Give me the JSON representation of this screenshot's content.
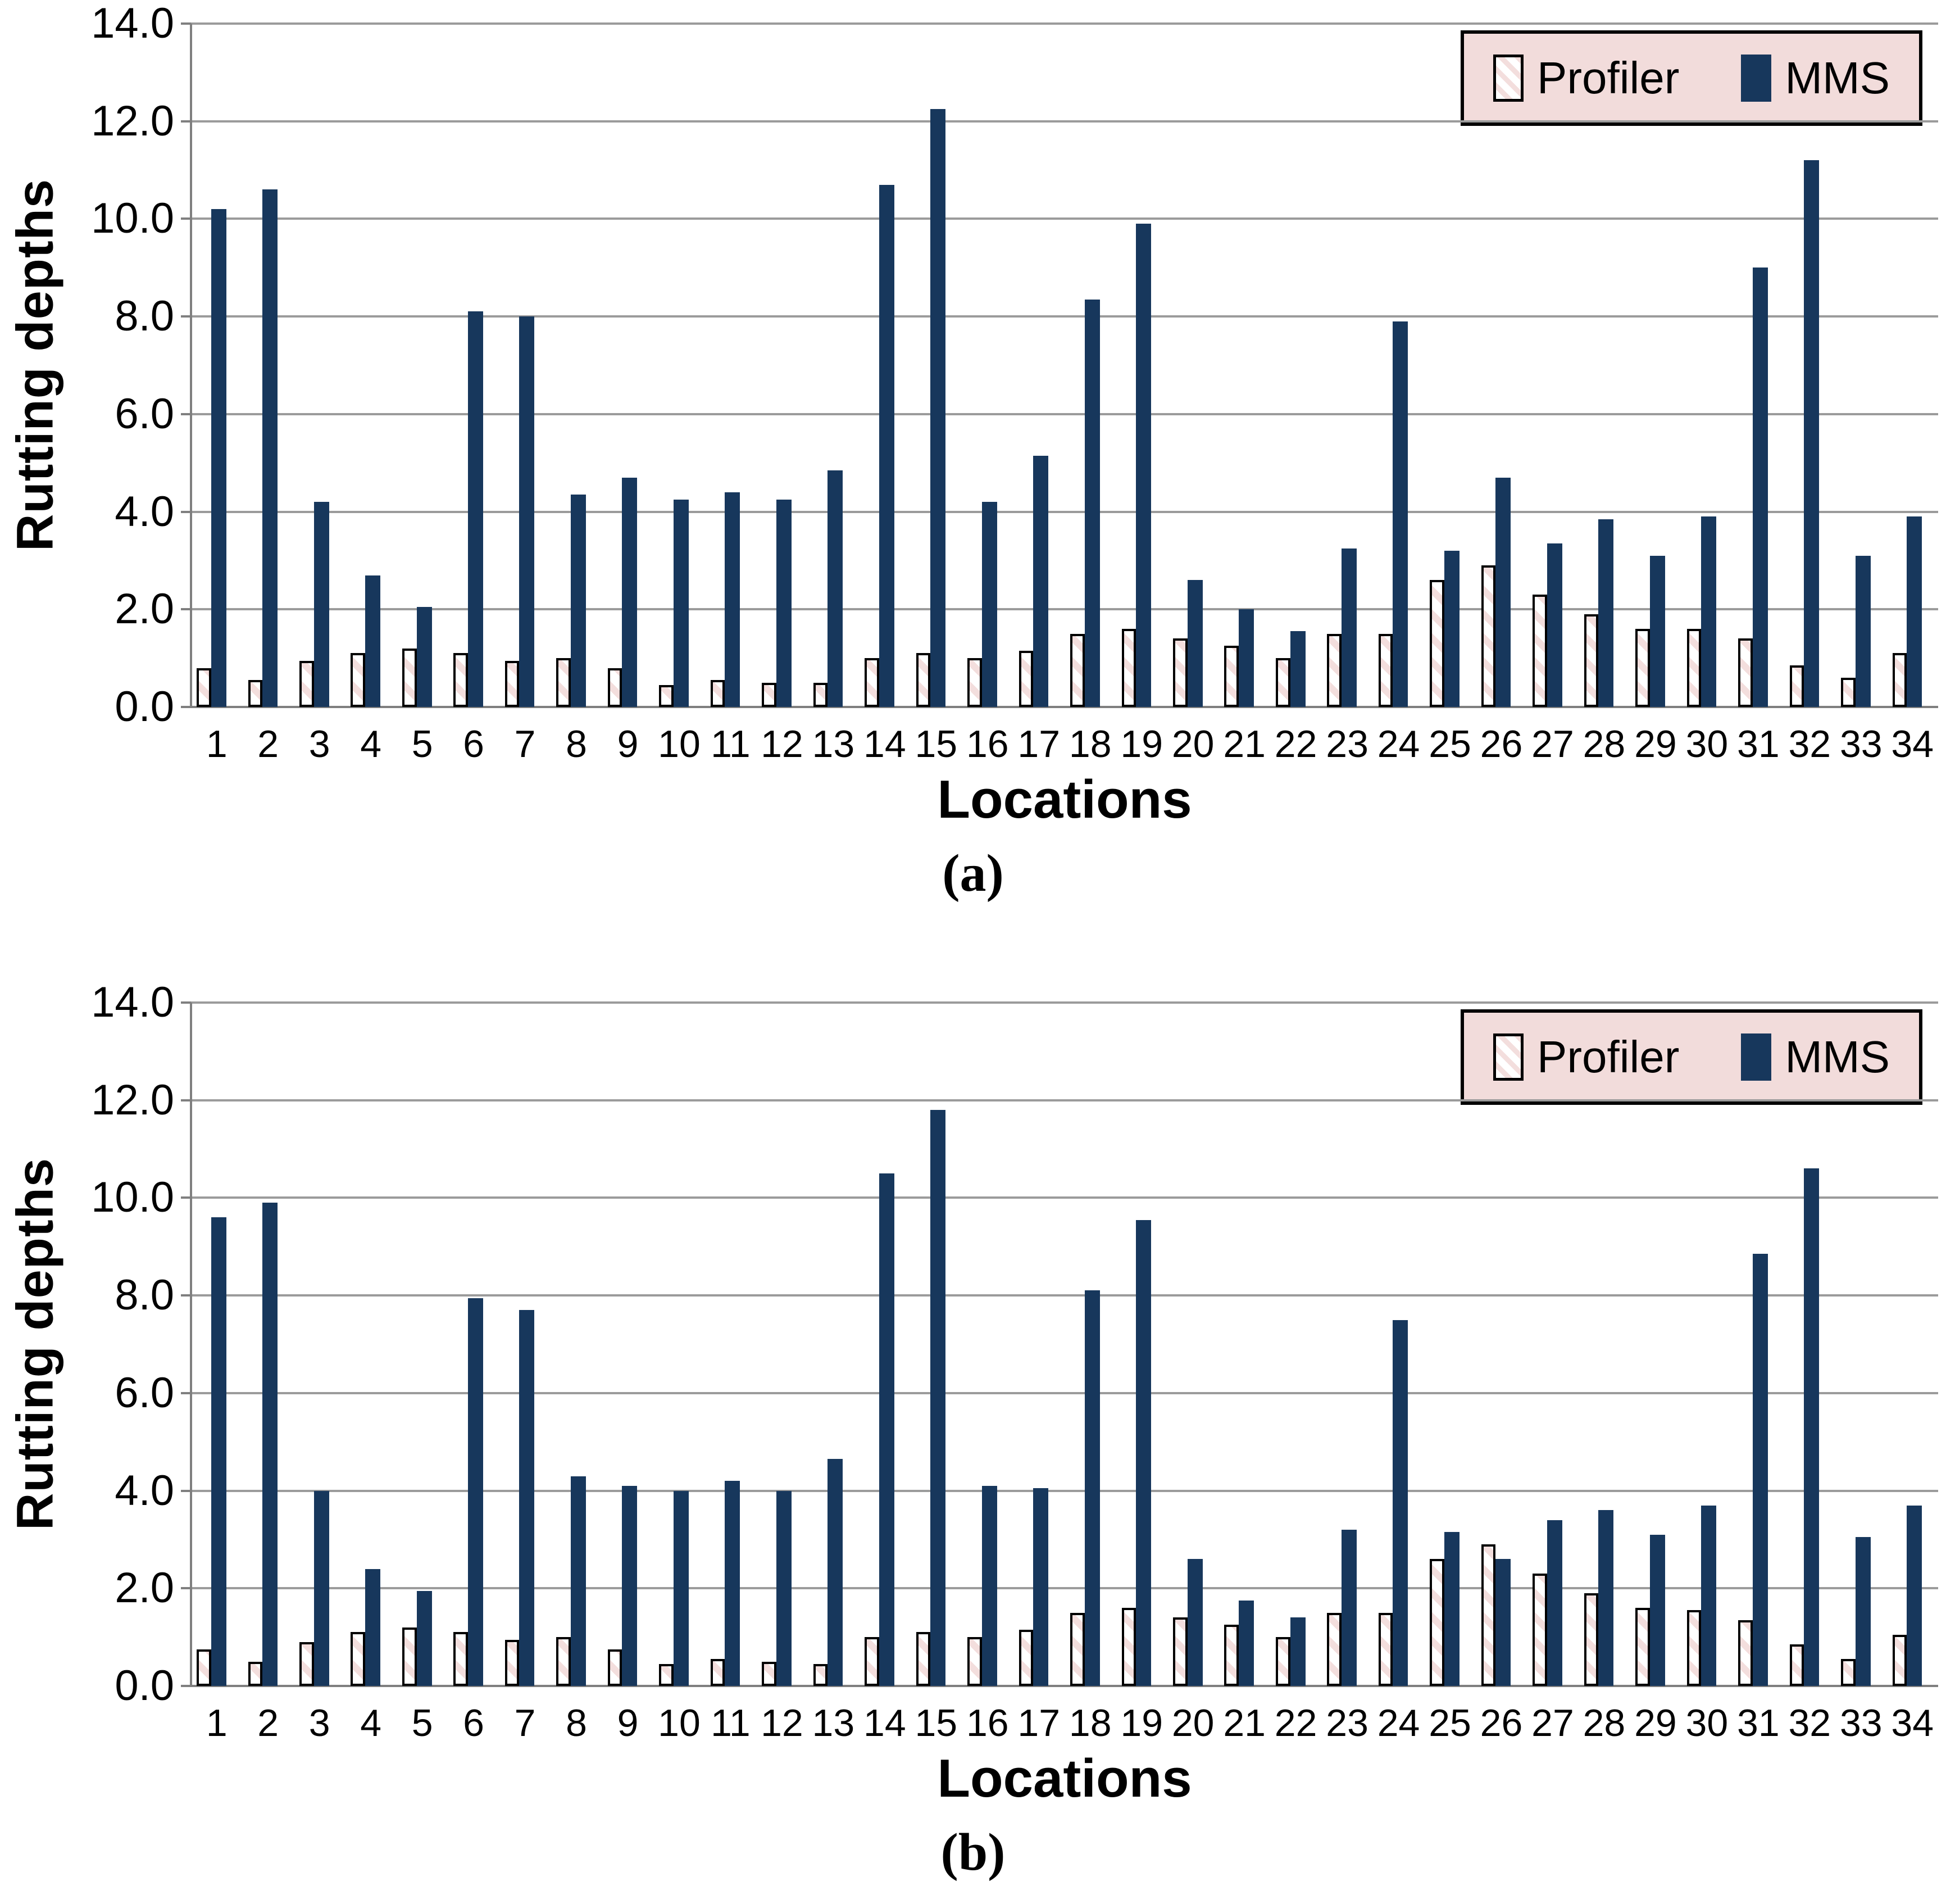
{
  "colors": {
    "mms_bar": "#17375C",
    "legend_bg": "#F2DCDB",
    "hatch_stripe": "#F3DEDD",
    "gridline": "#9B9B9B",
    "axis_line": "#7F7F7F",
    "bar_outline": "#000000",
    "text": "#000000"
  },
  "chart_data": [
    {
      "id": "a",
      "type": "bar",
      "panel_label": "(a)",
      "xlabel": "Locations",
      "ylabel": "Rutting depths",
      "ylim": [
        0,
        14
      ],
      "ytick_step": 2,
      "yticks": [
        "0.0",
        "2.0",
        "4.0",
        "6.0",
        "8.0",
        "10.0",
        "12.0",
        "14.0"
      ],
      "grid": true,
      "legend_position": "top-right",
      "categories": [
        "1",
        "2",
        "3",
        "4",
        "5",
        "6",
        "7",
        "8",
        "9",
        "10",
        "11",
        "12",
        "13",
        "14",
        "15",
        "16",
        "17",
        "18",
        "19",
        "20",
        "21",
        "22",
        "23",
        "24",
        "25",
        "26",
        "27",
        "28",
        "29",
        "30",
        "31",
        "32",
        "33",
        "34"
      ],
      "series": [
        {
          "name": "Profiler",
          "style": "hatched-pink",
          "values": [
            0.8,
            0.55,
            0.95,
            1.1,
            1.2,
            1.1,
            0.95,
            1.0,
            0.8,
            0.45,
            0.55,
            0.5,
            0.5,
            1.0,
            1.1,
            1.0,
            1.15,
            1.5,
            1.6,
            1.4,
            1.25,
            1.0,
            1.5,
            1.5,
            2.6,
            2.9,
            2.3,
            1.9,
            1.6,
            1.6,
            1.4,
            0.85,
            0.6,
            1.1
          ]
        },
        {
          "name": "MMS",
          "style": "solid-navy",
          "values": [
            10.2,
            10.6,
            4.2,
            2.7,
            2.05,
            8.1,
            8.0,
            4.35,
            4.7,
            4.25,
            4.4,
            4.25,
            4.85,
            10.7,
            12.25,
            4.2,
            5.15,
            8.35,
            9.9,
            2.6,
            2.0,
            1.55,
            3.25,
            7.9,
            3.2,
            4.7,
            3.35,
            3.85,
            3.1,
            3.9,
            9.0,
            11.2,
            3.1,
            3.9
          ]
        }
      ]
    },
    {
      "id": "b",
      "type": "bar",
      "panel_label": "(b)",
      "xlabel": "Locations",
      "ylabel": "Rutting depths",
      "ylim": [
        0,
        14
      ],
      "ytick_step": 2,
      "yticks": [
        "0.0",
        "2.0",
        "4.0",
        "6.0",
        "8.0",
        "10.0",
        "12.0",
        "14.0"
      ],
      "grid": true,
      "legend_position": "top-right",
      "categories": [
        "1",
        "2",
        "3",
        "4",
        "5",
        "6",
        "7",
        "8",
        "9",
        "10",
        "11",
        "12",
        "13",
        "14",
        "15",
        "16",
        "17",
        "18",
        "19",
        "20",
        "21",
        "22",
        "23",
        "24",
        "25",
        "26",
        "27",
        "28",
        "29",
        "30",
        "31",
        "32",
        "33",
        "34"
      ],
      "series": [
        {
          "name": "Profiler",
          "style": "hatched-pink",
          "values": [
            0.75,
            0.5,
            0.9,
            1.1,
            1.2,
            1.1,
            0.95,
            1.0,
            0.75,
            0.45,
            0.55,
            0.5,
            0.45,
            1.0,
            1.1,
            1.0,
            1.15,
            1.5,
            1.6,
            1.4,
            1.25,
            1.0,
            1.5,
            1.5,
            2.6,
            2.9,
            2.3,
            1.9,
            1.6,
            1.55,
            1.35,
            0.85,
            0.55,
            1.05
          ]
        },
        {
          "name": "MMS",
          "style": "solid-navy",
          "values": [
            9.6,
            9.9,
            4.0,
            2.4,
            1.95,
            7.95,
            7.7,
            4.3,
            4.1,
            4.0,
            4.2,
            4.0,
            4.65,
            10.5,
            11.8,
            4.1,
            4.05,
            8.1,
            9.55,
            2.6,
            1.75,
            1.4,
            3.2,
            7.5,
            3.15,
            2.6,
            3.4,
            3.6,
            3.1,
            3.7,
            8.85,
            10.6,
            3.05,
            3.7
          ]
        }
      ]
    }
  ]
}
